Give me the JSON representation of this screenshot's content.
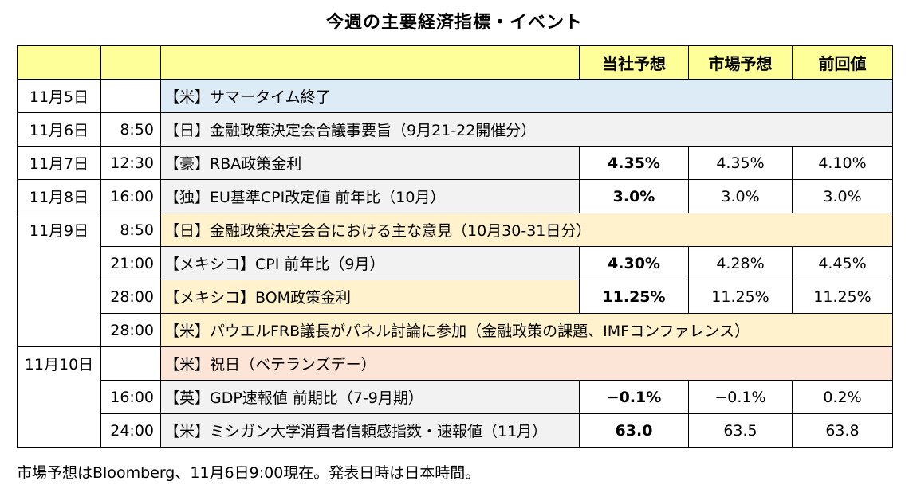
{
  "title": "今週の主要経済指標・イベント",
  "header": {
    "c1": "",
    "c2": "",
    "c3": "",
    "company": "当社予想",
    "market": "市場予想",
    "previous": "前回値"
  },
  "rows": [
    {
      "date": "11月5日",
      "time": "",
      "event": "【米】サマータイム終了",
      "company": "",
      "market": "",
      "previous": ""
    },
    {
      "date": "11月6日",
      "time": "8:50",
      "event": "【日】金融政策決定会合議事要旨（9月21-22開催分）",
      "company": "",
      "market": "",
      "previous": ""
    },
    {
      "date": "11月7日",
      "time": "12:30",
      "event": "【豪】RBA政策金利",
      "company": "4.35%",
      "market": "4.35%",
      "previous": "4.10%"
    },
    {
      "date": "11月8日",
      "time": "16:00",
      "event": "【独】EU基準CPI改定値 前年比（10月）",
      "company": "3.0%",
      "market": "3.0%",
      "previous": "3.0%"
    },
    {
      "date": "11月9日",
      "time": "8:50",
      "event": "【日】金融政策決定会合における主な意見（10月30-31日分）",
      "company": "",
      "market": "",
      "previous": ""
    },
    {
      "date": "",
      "time": "21:00",
      "event": "【メキシコ】CPI 前年比（9月）",
      "company": "4.30%",
      "market": "4.28%",
      "previous": "4.45%"
    },
    {
      "date": "",
      "time": "28:00",
      "event": "【メキシコ】BOM政策金利",
      "company": "11.25%",
      "market": "11.25%",
      "previous": "11.25%"
    },
    {
      "date": "",
      "time": "28:00",
      "event": "【米】パウエルFRB議長がパネル討論に参加（金融政策の課題、IMFコンファレンス）",
      "company": "",
      "market": "",
      "previous": ""
    },
    {
      "date": "11月10日",
      "time": "",
      "event": "【米】祝日（ベテランズデー）",
      "company": "",
      "market": "",
      "previous": ""
    },
    {
      "date": "",
      "time": "16:00",
      "event": "【英】GDP速報値 前期比（7-9月期）",
      "company": "−0.1%",
      "market": "−0.1%",
      "previous": "0.2%"
    },
    {
      "date": "",
      "time": "24:00",
      "event": "【米】ミシガン大学消費者信頼感指数・速報値（11月）",
      "company": "63.0",
      "market": "63.5",
      "previous": "63.8"
    }
  ],
  "colors": {
    "header": "#ffff99",
    "blue": "#ddebf7",
    "gray": "#f2f2f2",
    "cream": "#fff2cc",
    "pink": "#fce4d6"
  },
  "footnote": "市場予想はBloomberg、11月6日9:00現在。発表日時は日本時間。"
}
